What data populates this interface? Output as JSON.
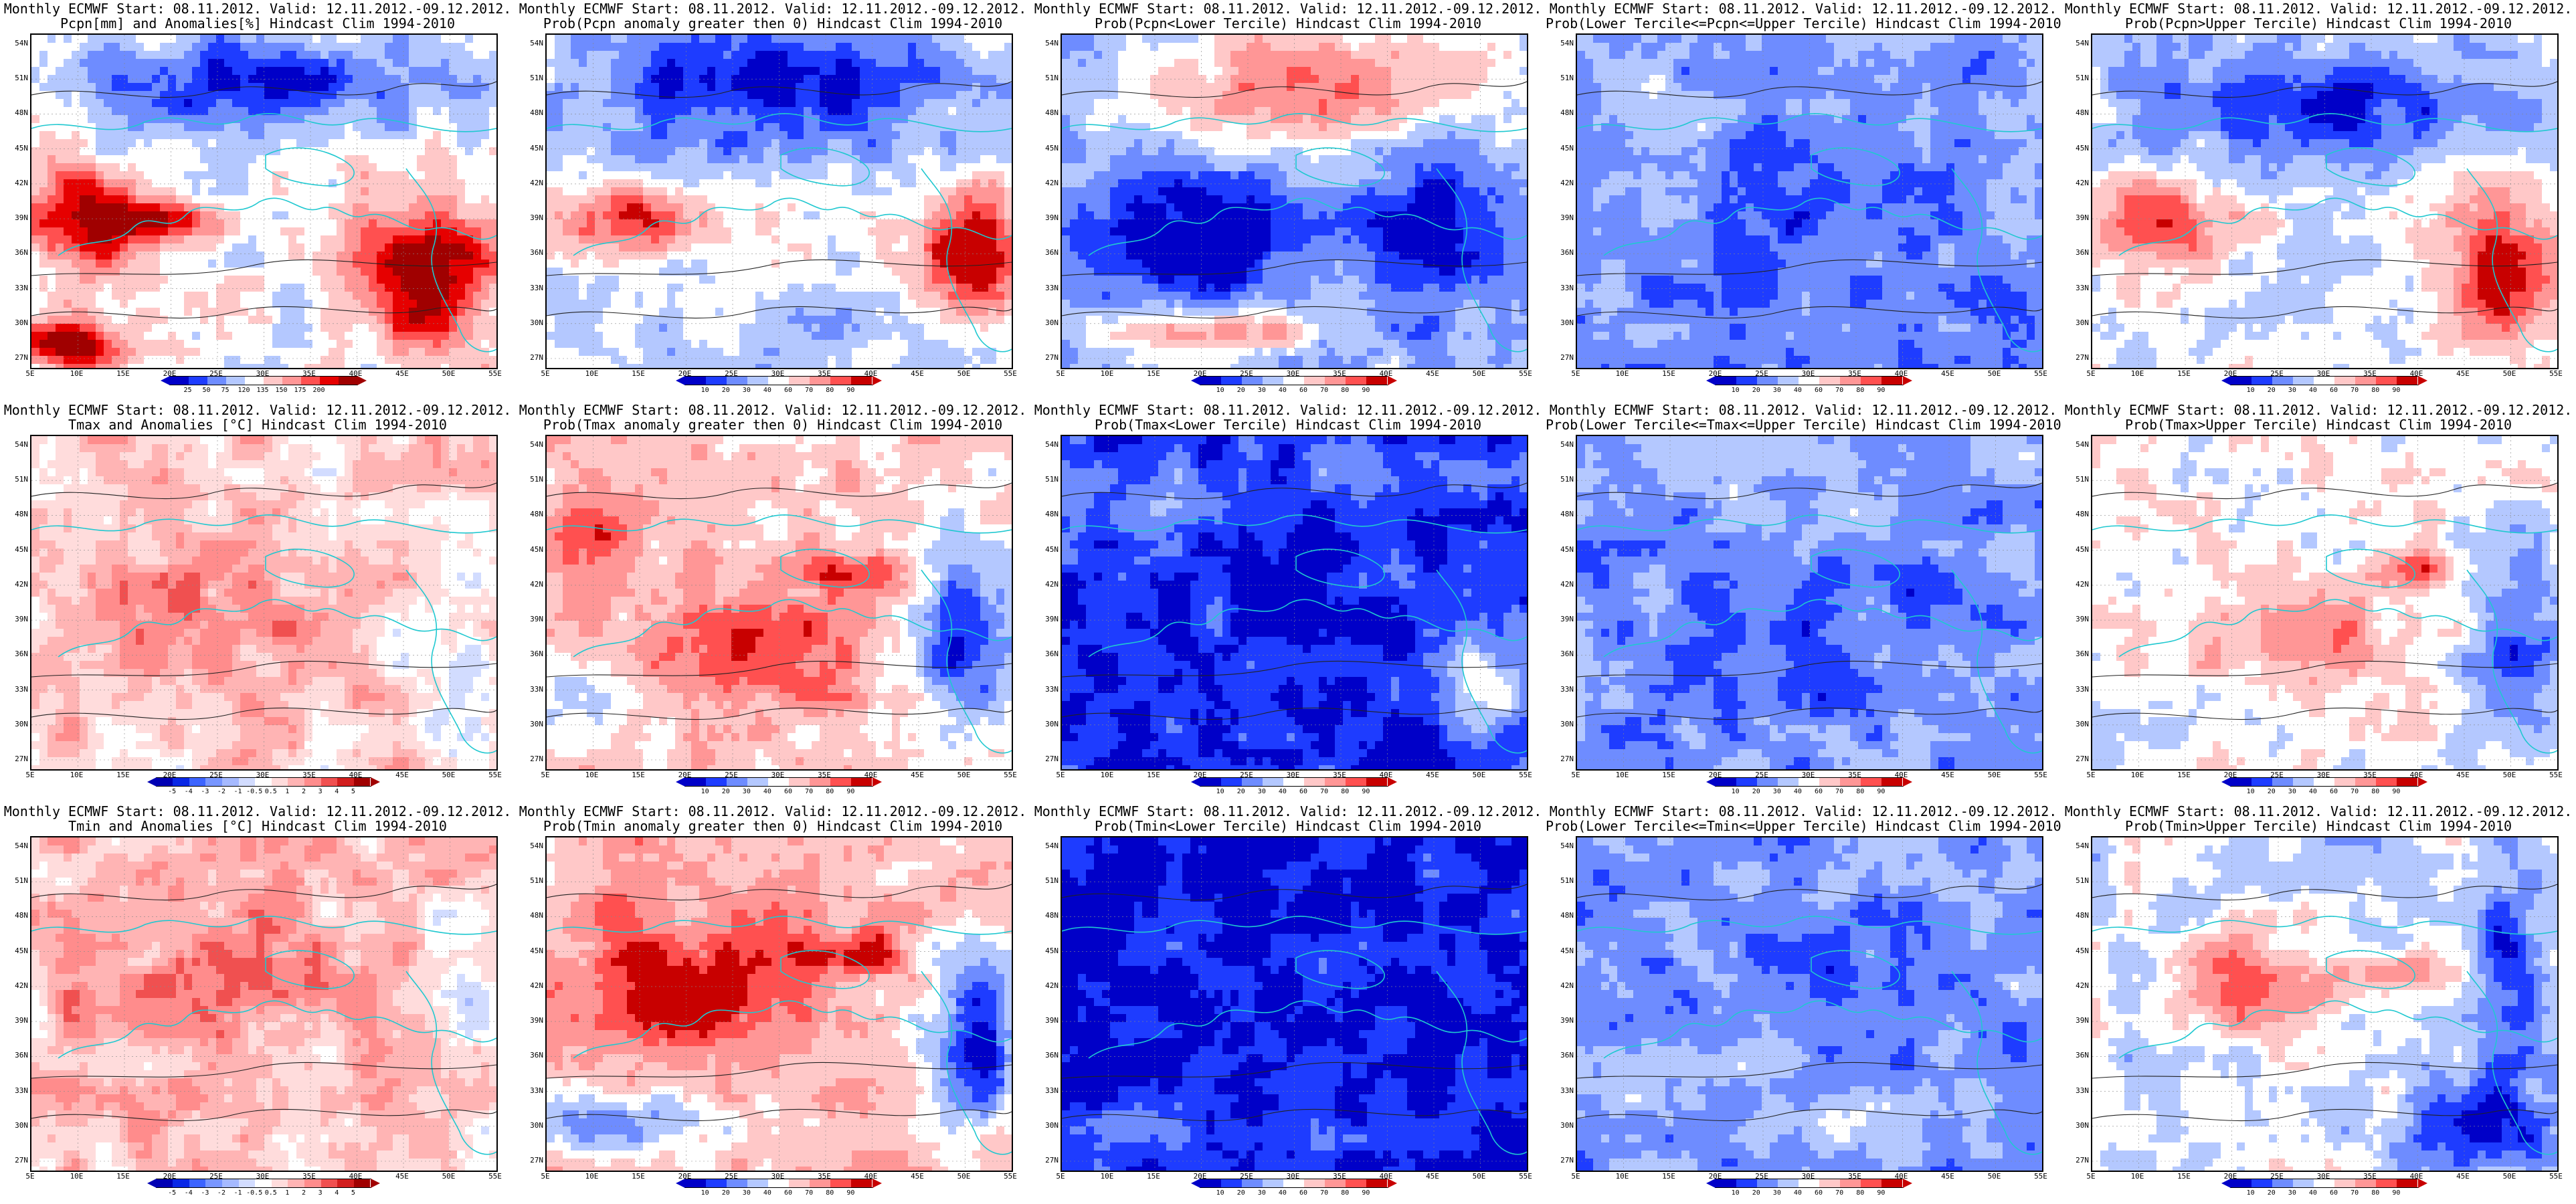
{
  "header_line": "Monthly ECMWF Start: 08.11.2012. Valid: 12.11.2012.-09.12.2012.",
  "lat_labels": [
    "54N",
    "51N",
    "48N",
    "45N",
    "42N",
    "39N",
    "36N",
    "33N",
    "30N",
    "27N"
  ],
  "lon_labels": [
    "5E",
    "10E",
    "15E",
    "20E",
    "25E",
    "30E",
    "35E",
    "40E",
    "45E",
    "50E",
    "55E"
  ],
  "scales": {
    "precip_anom": {
      "ticks": [
        "25",
        "50",
        "75",
        "120",
        "135",
        "150",
        "175",
        "200"
      ],
      "colors": [
        "#0000c8",
        "#1e3cff",
        "#6e8cff",
        "#b4c8ff",
        "#ffffff",
        "#ffc8c8",
        "#ff9696",
        "#ff5050",
        "#e60000",
        "#a00000"
      ]
    },
    "temp_anom": {
      "ticks": [
        "-5",
        "-4",
        "-3",
        "-2",
        "-1",
        "-0.5",
        "0.5",
        "1",
        "2",
        "3",
        "4",
        "5"
      ],
      "colors": [
        "#0000b4",
        "#0a28e6",
        "#3c64ff",
        "#7896ff",
        "#a5b9ff",
        "#d2dcff",
        "#ffffff",
        "#ffdcdc",
        "#ffb4b4",
        "#ff8c8c",
        "#f05050",
        "#d21e1e",
        "#a00000"
      ]
    },
    "prob": {
      "ticks": [
        "10",
        "20",
        "30",
        "40",
        "60",
        "70",
        "80",
        "90"
      ],
      "colors": [
        "#0000c8",
        "#1e3cff",
        "#6e8cff",
        "#b4c8ff",
        "#ffffff",
        "#ffc8c8",
        "#ff9696",
        "#ff5050",
        "#c80000"
      ]
    }
  },
  "panels": [
    {
      "subtitle": "Pcpn[mm] and Anomalies[%] Hindcast Clim 1994-2010",
      "scale": "precip_anom",
      "field": "pcpn_anom"
    },
    {
      "subtitle": "Prob(Pcpn anomaly greater then 0) Hindcast Clim 1994-2010",
      "scale": "prob",
      "field": "pcpn_pos"
    },
    {
      "subtitle": "Prob(Pcpn<Lower Tercile) Hindcast Clim 1994-2010",
      "scale": "prob",
      "field": "pcpn_low"
    },
    {
      "subtitle": "Prob(Lower Tercile<=Pcpn<=Upper Tercile) Hindcast Clim 1994-2010",
      "scale": "prob",
      "field": "pcpn_mid"
    },
    {
      "subtitle": "Prob(Pcpn>Upper Tercile) Hindcast Clim 1994-2010",
      "scale": "prob",
      "field": "pcpn_up"
    },
    {
      "subtitle": "Tmax and Anomalies [°C] Hindcast Clim 1994-2010",
      "scale": "temp_anom",
      "field": "tmax_anom"
    },
    {
      "subtitle": "Prob(Tmax anomaly greater then 0) Hindcast Clim 1994-2010",
      "scale": "prob",
      "field": "tmax_pos"
    },
    {
      "subtitle": "Prob(Tmax<Lower Tercile) Hindcast Clim 1994-2010",
      "scale": "prob",
      "field": "tmax_low"
    },
    {
      "subtitle": "Prob(Lower Tercile<=Tmax<=Upper Tercile) Hindcast Clim 1994-2010",
      "scale": "prob",
      "field": "tmax_mid"
    },
    {
      "subtitle": "Prob(Tmax>Upper Tercile) Hindcast Clim 1994-2010",
      "scale": "prob",
      "field": "tmax_up"
    },
    {
      "subtitle": "Tmin and Anomalies [°C] Hindcast Clim 1994-2010",
      "scale": "temp_anom",
      "field": "tmin_anom"
    },
    {
      "subtitle": "Prob(Tmin anomaly greater then 0) Hindcast Clim 1994-2010",
      "scale": "prob",
      "field": "tmin_pos"
    },
    {
      "subtitle": "Prob(Tmin<Lower Tercile) Hindcast Clim 1994-2010",
      "scale": "prob",
      "field": "tmin_low"
    },
    {
      "subtitle": "Prob(Lower Tercile<=Tmin<=Upper Tercile) Hindcast Clim 1994-2010",
      "scale": "prob",
      "field": "tmin_mid"
    },
    {
      "subtitle": "Prob(Tmin>Upper Tercile) Hindcast Clim 1994-2010",
      "scale": "prob",
      "field": "tmin_up"
    }
  ]
}
